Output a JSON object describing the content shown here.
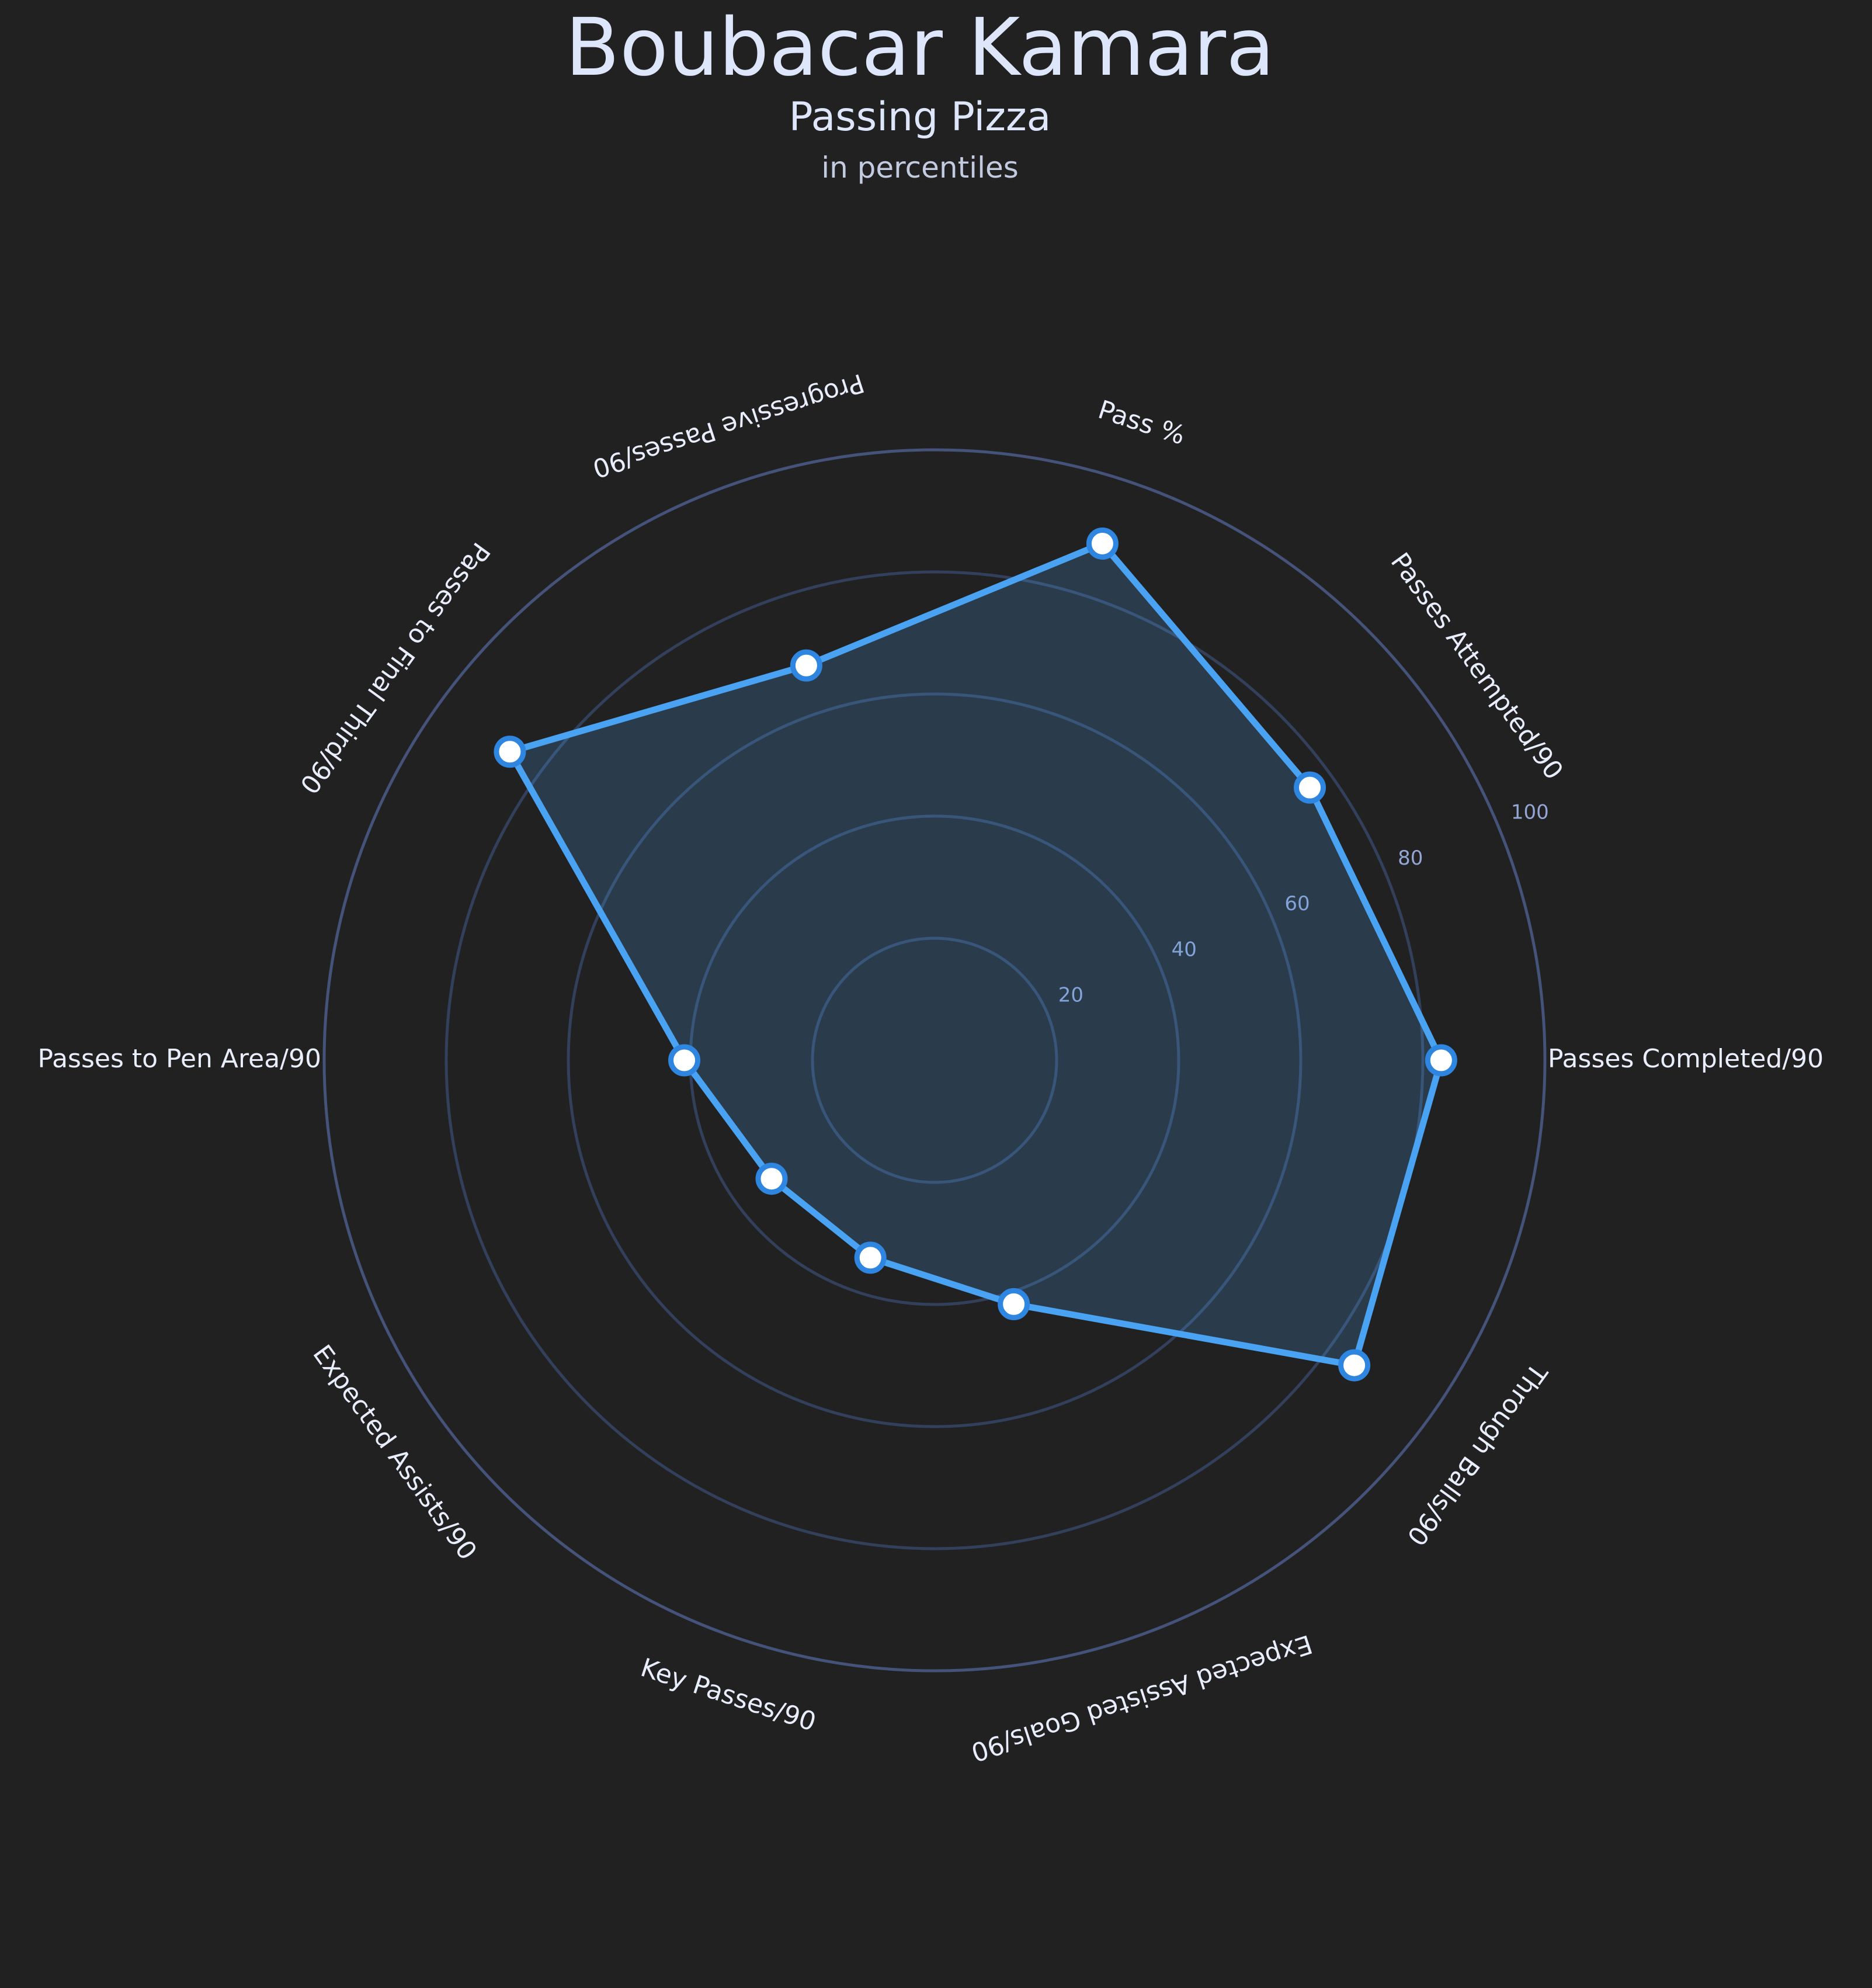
{
  "header": {
    "title": "Boubacar Kamara",
    "subtitle": "Passing Pizza",
    "note": "in percentiles"
  },
  "colors": {
    "background": "#212121",
    "series": "#4aa3f2",
    "grid": "#33405c",
    "text": "#dde6fb"
  },
  "chart_data": {
    "type": "radar",
    "title": "Boubacar Kamara",
    "subtitle": "Passing Pizza",
    "note": "in percentiles",
    "rlim": [
      0,
      100
    ],
    "rticks": [
      20,
      40,
      60,
      80,
      100
    ],
    "grid": true,
    "categories": [
      "Passes Completed/90",
      "Passes Attempted/90",
      "Pass %",
      "Progressive Passes/90",
      "Passes to Final Third/90",
      "Passes to Pen Area/90",
      "Expected Assists/90",
      "Key Passes/90",
      "Expected Assisted Goals/90",
      "Through Balls/90"
    ],
    "series": [
      {
        "values": [
          83,
          76,
          89,
          68,
          86,
          41,
          33,
          34,
          42,
          85
        ]
      }
    ]
  }
}
